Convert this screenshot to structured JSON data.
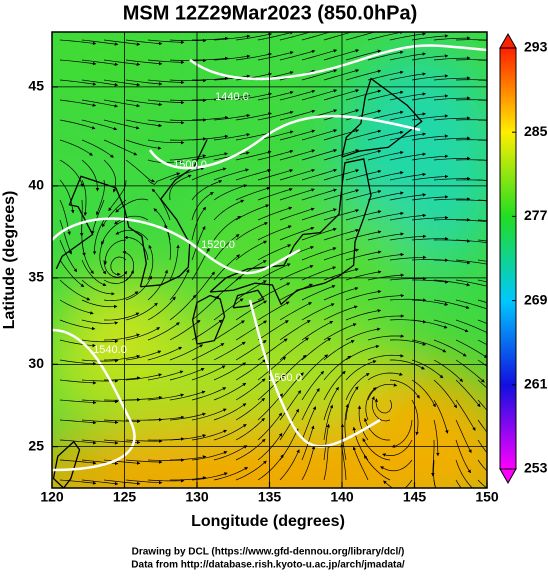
{
  "chart_data": {
    "type": "map",
    "title": "MSM 12Z29Mar2023 (850.0hPa)",
    "x_label": "Longitude (degrees)",
    "y_label": "Latitude  (degrees)",
    "xlim": [
      120,
      150
    ],
    "ylim": [
      22.4,
      47.6
    ],
    "xticks": [
      120,
      125,
      130,
      135,
      140,
      145,
      150
    ],
    "yticks": [
      25,
      30,
      35,
      40,
      45
    ],
    "grid": true,
    "colorbar": {
      "lim": [
        253,
        293
      ],
      "ticks": [
        253,
        261,
        269,
        277,
        285,
        293
      ],
      "colors": [
        "#ff00ff",
        "#1010e0",
        "#00c8ff",
        "#22dd22",
        "#ffee00",
        "#ff2000"
      ]
    },
    "contour_labels": [
      "1440.0",
      "1500.0",
      "1520.0",
      "1540.0",
      "1560.0"
    ],
    "credits": [
      "Drawing by DCL (https://www.gfd-dennou.org/library/dcl/)",
      "Data from http://database.rish.kyoto-u.ac.jp/arch/jmadata/"
    ]
  }
}
